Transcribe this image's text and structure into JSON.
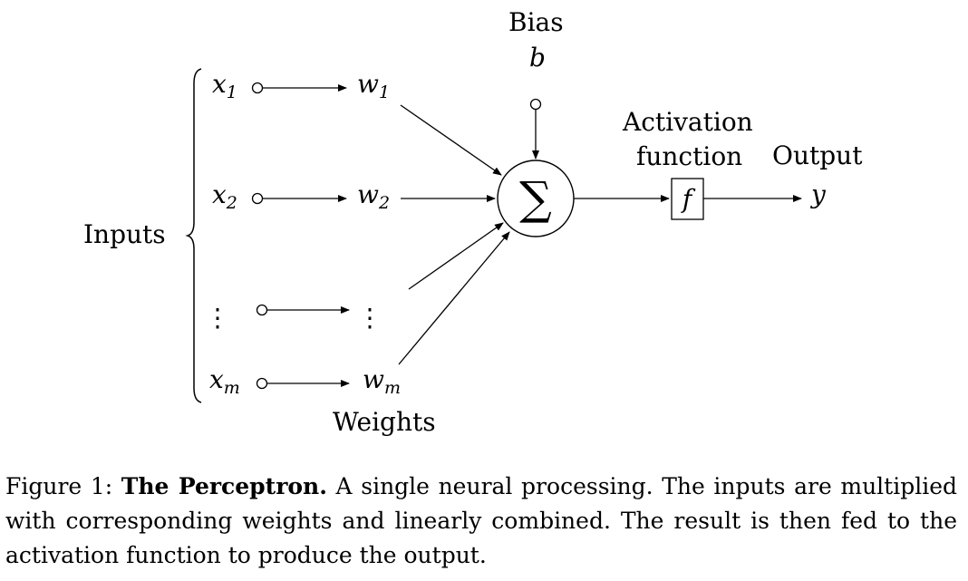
{
  "diagram": {
    "inputs_label": "Inputs",
    "weights_label": "Weights",
    "bias": {
      "label": "Bias",
      "symbol": "b"
    },
    "sum_symbol": "∑",
    "activation": {
      "line1": "Activation",
      "line2": "function",
      "symbol": "f"
    },
    "output": {
      "label": "Output",
      "symbol": "y"
    },
    "inputs": [
      {
        "var": "x",
        "sub": "1",
        "weight": "w",
        "weight_sub": "1"
      },
      {
        "var": "x",
        "sub": "2",
        "weight": "w",
        "weight_sub": "2"
      },
      {
        "var": "⋮",
        "sub": "",
        "weight": "⋮",
        "weight_sub": ""
      },
      {
        "var": "x",
        "sub": "m",
        "weight": "w",
        "weight_sub": "m"
      }
    ]
  },
  "caption": {
    "prefix": "Figure 1: ",
    "title": "The Perceptron.",
    "text": " A single neural processing. The inputs are multiplied with corresponding weights and linearly combined. The result is then fed to the activation function to produce the output."
  }
}
